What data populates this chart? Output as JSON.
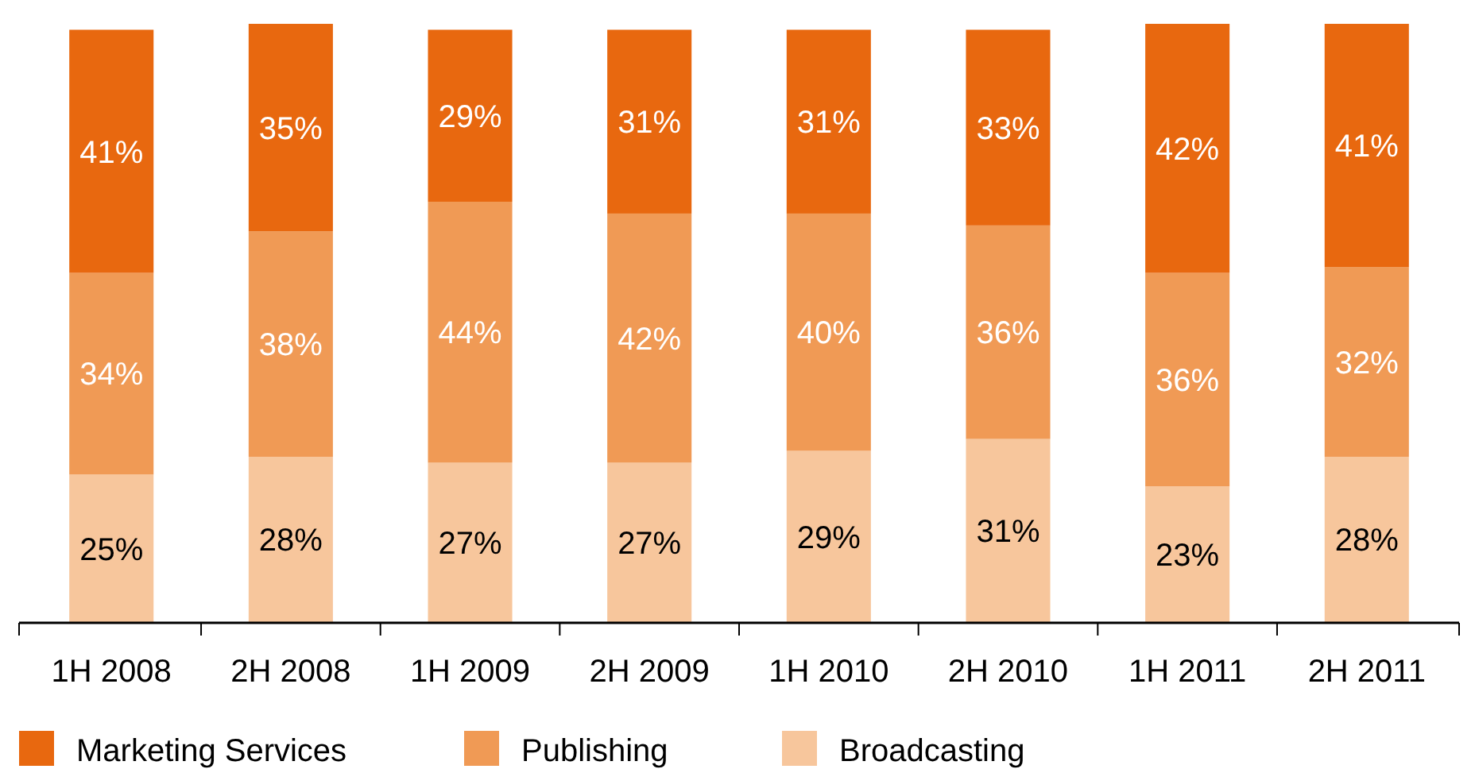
{
  "chart_data": {
    "type": "bar",
    "stacked": true,
    "legend": "bottom",
    "categories": [
      "1H 2008",
      "2H 2008",
      "1H 2009",
      "2H 2009",
      "1H 2010",
      "2H 2010",
      "1H 2011",
      "2H 2011"
    ],
    "series": [
      {
        "name": "Broadcasting",
        "color": "#f7c69c",
        "values": [
          25,
          28,
          27,
          27,
          29,
          31,
          23,
          28
        ],
        "value_labels": [
          "25%",
          "28%",
          "27%",
          "27%",
          "29%",
          "31%",
          "23%",
          "28%"
        ]
      },
      {
        "name": "Publishing",
        "color": "#f09a55",
        "values": [
          34,
          38,
          44,
          42,
          40,
          36,
          36,
          32
        ],
        "value_labels": [
          "34%",
          "38%",
          "44%",
          "42%",
          "40%",
          "36%",
          "36%",
          "32%"
        ]
      },
      {
        "name": "Marketing Services",
        "color": "#e8680f",
        "values": [
          41,
          35,
          29,
          31,
          31,
          33,
          42,
          41
        ],
        "value_labels": [
          "41%",
          "35%",
          "29%",
          "31%",
          "31%",
          "33%",
          "42%",
          "41%"
        ]
      }
    ]
  }
}
